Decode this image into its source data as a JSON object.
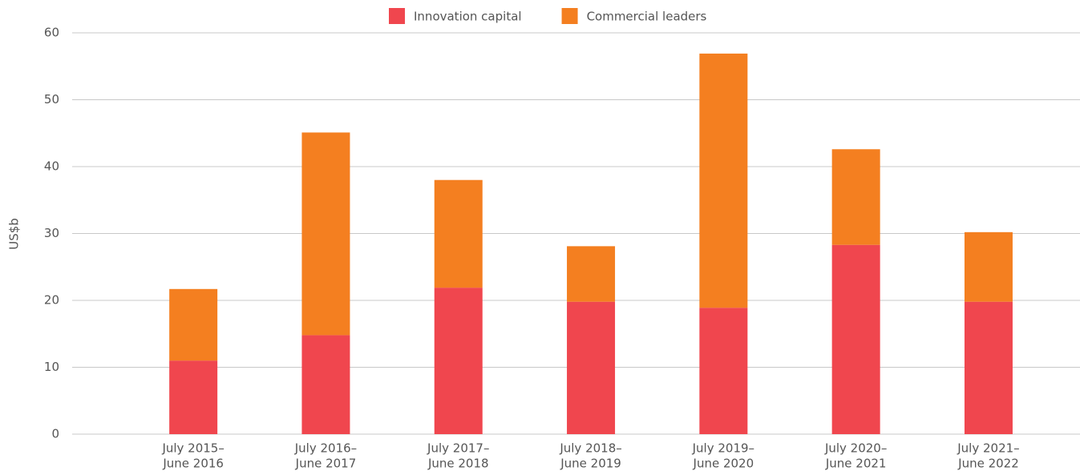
{
  "chart_data": {
    "type": "stacked_bar",
    "y_label": "US$b",
    "categories": [
      [
        "July 2015–",
        "June 2016"
      ],
      [
        "July 2016–",
        "June 2017"
      ],
      [
        "July 2017–",
        "June 2018"
      ],
      [
        "July 2018–",
        "June 2019"
      ],
      [
        "July 2019–",
        "June 2020"
      ],
      [
        "July 2020–",
        "June 2021"
      ],
      [
        "July 2021–",
        "June 2022"
      ]
    ],
    "series": [
      {
        "name": "Innovation capital",
        "color": "#f0464e",
        "values": [
          11.0,
          14.8,
          21.9,
          19.8,
          18.9,
          28.3,
          19.8
        ]
      },
      {
        "name": "Commercial leaders",
        "color": "#f47f20",
        "values": [
          10.7,
          30.3,
          16.1,
          8.3,
          38.0,
          14.3,
          10.4
        ]
      }
    ],
    "ylim": [
      0,
      60
    ],
    "yticks": [
      0,
      10,
      20,
      30,
      40,
      50,
      60
    ],
    "grid": true,
    "legend": "top"
  }
}
